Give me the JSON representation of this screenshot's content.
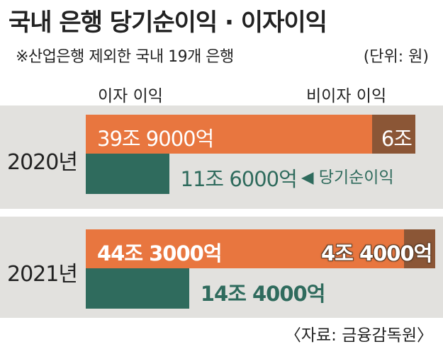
{
  "title": "국내 은행 당기순이익 · 이자이익",
  "subtitle": "※산업은행 제외한 국내 19개 은행",
  "unit": "(단위: 원)",
  "legend": {
    "interest": "이자 이익",
    "non_interest": "비이자 이익"
  },
  "source": "〈자료: 금융감독원〉",
  "note": "◀ 당기순이익",
  "colors": {
    "interest": "#e8763f",
    "non_interest": "#8b5636",
    "net_income": "#2f6b5d",
    "panel": "#e2e1de"
  },
  "chart_data": {
    "type": "bar",
    "categories": [
      "2020년",
      "2021년"
    ],
    "unit": "원",
    "series": [
      {
        "name": "이자 이익",
        "values": [
          399000,
          443000
        ],
        "labels": [
          "39조 9000억",
          "44조 3000억"
        ]
      },
      {
        "name": "비이자 이익",
        "values": [
          60000,
          44000
        ],
        "labels": [
          "6조",
          "4조 4000억"
        ]
      },
      {
        "name": "당기순이익",
        "values": [
          116000,
          144000
        ],
        "labels": [
          "11조 6000억",
          "14조 4000억"
        ]
      }
    ]
  }
}
